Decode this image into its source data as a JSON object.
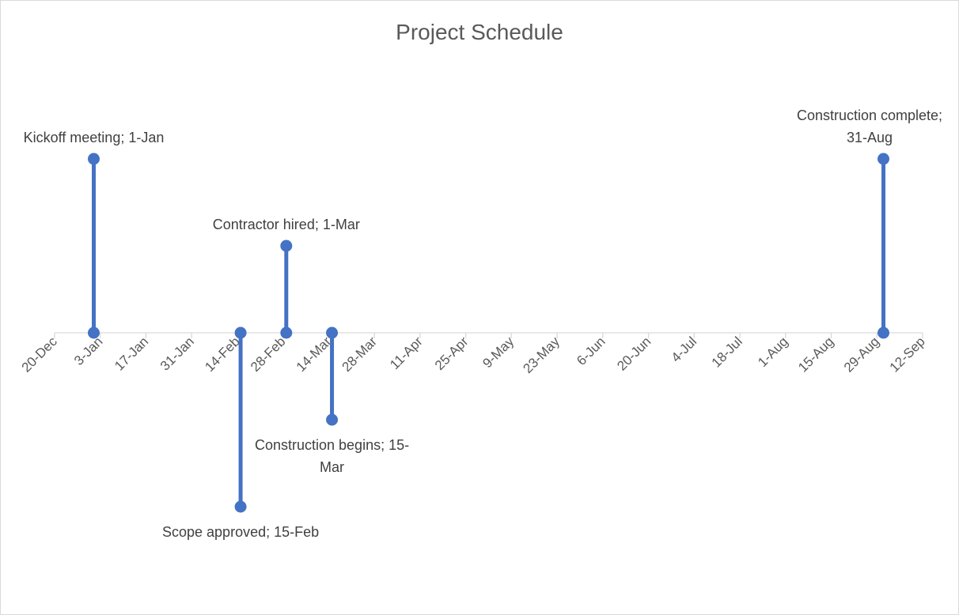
{
  "chart_data": {
    "type": "scatter",
    "title": "Project Schedule",
    "xlabel": "",
    "ylabel": "",
    "x_tick_labels": [
      "20-Dec",
      "3-Jan",
      "17-Jan",
      "31-Jan",
      "14-Feb",
      "28-Feb",
      "14-Mar",
      "28-Mar",
      "11-Apr",
      "25-Apr",
      "9-May",
      "23-May",
      "6-Jun",
      "20-Jun",
      "4-Jul",
      "18-Jul",
      "1-Aug",
      "15-Aug",
      "29-Aug",
      "12-Sep"
    ],
    "x_tick_interval_days": 14,
    "xlim": [
      "20-Dec",
      "12-Sep"
    ],
    "ylim": [
      -20,
      20
    ],
    "grid": false,
    "legend": "none",
    "series_color": "#4472c4",
    "axis_color": "#d9d9d9",
    "milestones": [
      {
        "date": "1-Jan",
        "height": 20,
        "label_lines": [
          "Kickoff meeting; 1-Jan"
        ]
      },
      {
        "date": "15-Feb",
        "height": -20,
        "label_lines": [
          "Scope approved; 15-Feb"
        ]
      },
      {
        "date": "1-Mar",
        "height": 10,
        "label_lines": [
          "Contractor hired; 1-Mar"
        ]
      },
      {
        "date": "15-Mar",
        "height": -10,
        "label_lines": [
          "Construction begins; 15-",
          "Mar"
        ]
      },
      {
        "date": "31-Aug",
        "height": 20,
        "label_lines": [
          "Construction complete;",
          "31-Aug"
        ]
      }
    ]
  }
}
